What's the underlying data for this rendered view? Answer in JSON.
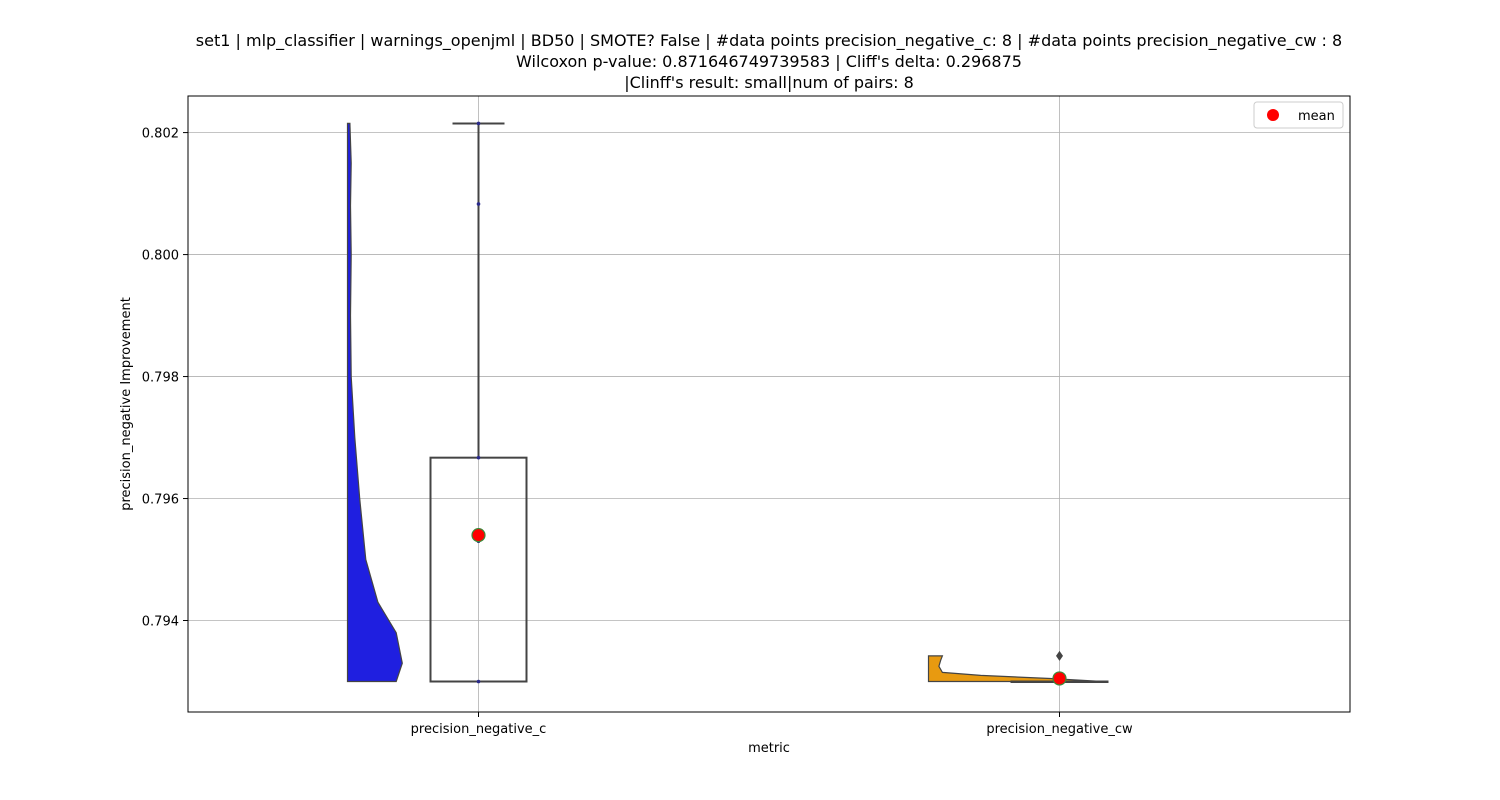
{
  "chart_data": {
    "type": "violin_box",
    "title_lines": [
      "set1 | mlp_classifier | warnings_openjml | BD50 | SMOTE? False | #data points precision_negative_c: 8 | #data points precision_negative_cw : 8",
      "Wilcoxon p-value: 0.871646749739583 | Cliff's delta: 0.296875",
      "|Clinff's result: small|num of pairs: 8"
    ],
    "xlabel": "metric",
    "ylabel": "precision_negative Improvement",
    "categories": [
      "precision_negative_c",
      "precision_negative_cw"
    ],
    "ylim": [
      0.7925,
      0.8026
    ],
    "yticks": [
      0.794,
      0.796,
      0.798,
      0.8,
      0.802
    ],
    "ytick_labels": [
      "0.794",
      "0.796",
      "0.798",
      "0.800",
      "0.802"
    ],
    "grid": true,
    "legend": {
      "position": "top-right",
      "entries": [
        {
          "label": "mean",
          "color": "#ff0000",
          "marker": "circle"
        }
      ]
    },
    "series": [
      {
        "category": "precision_negative_c",
        "violin_color": "#1f1fe0",
        "box": {
          "q1": 0.793,
          "median": 0.793,
          "q3": 0.79667,
          "whisker_low": 0.793,
          "whisker_high": 0.80215
        },
        "points": [
          0.80215,
          0.80083,
          0.79667,
          0.7953,
          0.793
        ],
        "mean": 0.7954,
        "violin_profile": [
          [
            0.793,
            0.8
          ],
          [
            0.7933,
            0.9
          ],
          [
            0.7938,
            0.8
          ],
          [
            0.7943,
            0.5
          ],
          [
            0.795,
            0.3
          ],
          [
            0.796,
            0.2
          ],
          [
            0.797,
            0.12
          ],
          [
            0.798,
            0.06
          ],
          [
            0.799,
            0.05
          ],
          [
            0.8,
            0.06
          ],
          [
            0.8008,
            0.05
          ],
          [
            0.8015,
            0.06
          ],
          [
            0.80215,
            0.04
          ]
        ]
      },
      {
        "category": "precision_negative_cw",
        "violin_color": "#e89a10",
        "box": {
          "q1": 0.793,
          "median": 0.793,
          "q3": 0.793,
          "whisker_low": 0.793,
          "whisker_high": 0.793
        },
        "points": [
          0.793
        ],
        "outliers": [
          0.79342
        ],
        "mean": 0.79305,
        "violin_profile": [
          [
            0.793,
            1.0
          ],
          [
            0.79305,
            0.7
          ],
          [
            0.7931,
            0.3
          ],
          [
            0.79315,
            0.08
          ],
          [
            0.79325,
            0.06
          ],
          [
            0.79335,
            0.07
          ],
          [
            0.79342,
            0.08
          ]
        ]
      }
    ]
  }
}
